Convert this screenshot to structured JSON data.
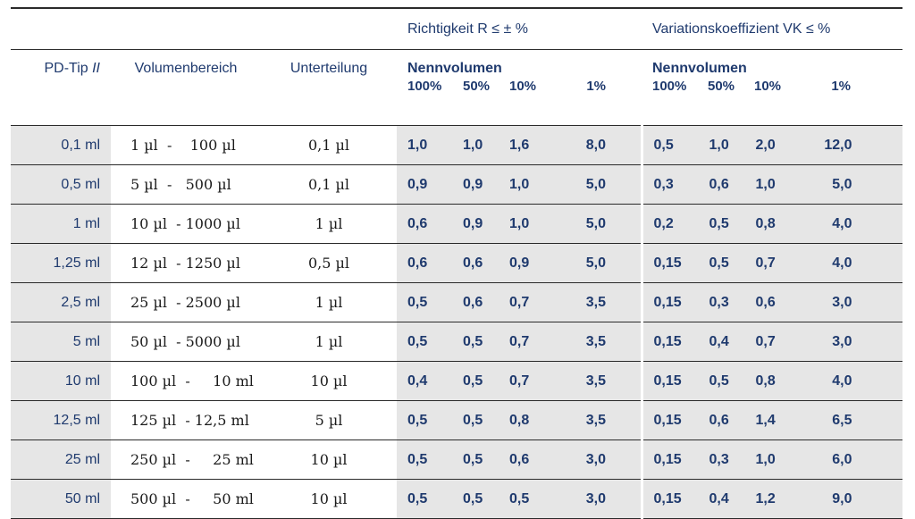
{
  "header": {
    "richtigkeit": "Richtigkeit R ≤ ± %",
    "variation": "Variationskoeffizient VK ≤ %",
    "pd_tip": "PD-Tip ",
    "pd_tip_mark": "II",
    "volumenbereich": "Volumenbereich",
    "unterteilung": "Unterteilung",
    "nennvolumen": "Nennvolumen",
    "percents": [
      "100%",
      "50%",
      "10%",
      "1%"
    ]
  },
  "rows": [
    {
      "tip": "0,1 ml",
      "vol": "1 µl  -    100 µl",
      "unt": "0,1 µl",
      "r": [
        "1,0",
        "1,0",
        "1,6",
        "8,0"
      ],
      "vk": [
        "0,5",
        "1,0",
        "2,0",
        "12,0"
      ]
    },
    {
      "tip": "0,5 ml",
      "vol": "5 µl  -   500 µl",
      "unt": "0,1 µl",
      "r": [
        "0,9",
        "0,9",
        "1,0",
        "5,0"
      ],
      "vk": [
        "0,3",
        "0,6",
        "1,0",
        "5,0"
      ]
    },
    {
      "tip": "1 ml",
      "vol": "10 µl  - 1000 µl",
      "unt": "1 µl",
      "r": [
        "0,6",
        "0,9",
        "1,0",
        "5,0"
      ],
      "vk": [
        "0,2",
        "0,5",
        "0,8",
        "4,0"
      ]
    },
    {
      "tip": "1,25 ml",
      "vol": "12 µl  - 1250 µl",
      "unt": "0,5 µl",
      "r": [
        "0,6",
        "0,6",
        "0,9",
        "5,0"
      ],
      "vk": [
        "0,15",
        "0,5",
        "0,7",
        "4,0"
      ]
    },
    {
      "tip": "2,5 ml",
      "vol": "25 µl  - 2500 µl",
      "unt": "1 µl",
      "r": [
        "0,5",
        "0,6",
        "0,7",
        "3,5"
      ],
      "vk": [
        "0,15",
        "0,3",
        "0,6",
        "3,0"
      ]
    },
    {
      "tip": "5 ml",
      "vol": "50 µl  - 5000 µl",
      "unt": "1 µl",
      "r": [
        "0,5",
        "0,5",
        "0,7",
        "3,5"
      ],
      "vk": [
        "0,15",
        "0,4",
        "0,7",
        "3,0"
      ]
    },
    {
      "tip": "10 ml",
      "vol": "100 µl  -     10 ml",
      "unt": "10 µl",
      "r": [
        "0,4",
        "0,5",
        "0,7",
        "3,5"
      ],
      "vk": [
        "0,15",
        "0,5",
        "0,8",
        "4,0"
      ]
    },
    {
      "tip": "12,5 ml",
      "vol": "125 µl  - 12,5 ml",
      "unt": "5 µl",
      "r": [
        "0,5",
        "0,5",
        "0,8",
        "3,5"
      ],
      "vk": [
        "0,15",
        "0,6",
        "1,4",
        "6,5"
      ]
    },
    {
      "tip": "25 ml",
      "vol": "250 µl  -     25 ml",
      "unt": "10 µl",
      "r": [
        "0,5",
        "0,5",
        "0,6",
        "3,0"
      ],
      "vk": [
        "0,15",
        "0,3",
        "1,0",
        "6,0"
      ]
    },
    {
      "tip": "50 ml",
      "vol": "500 µl  -     50 ml",
      "unt": "10 µl",
      "r": [
        "0,5",
        "0,5",
        "0,5",
        "3,0"
      ],
      "vk": [
        "0,15",
        "0,4",
        "1,2",
        "9,0"
      ]
    }
  ]
}
